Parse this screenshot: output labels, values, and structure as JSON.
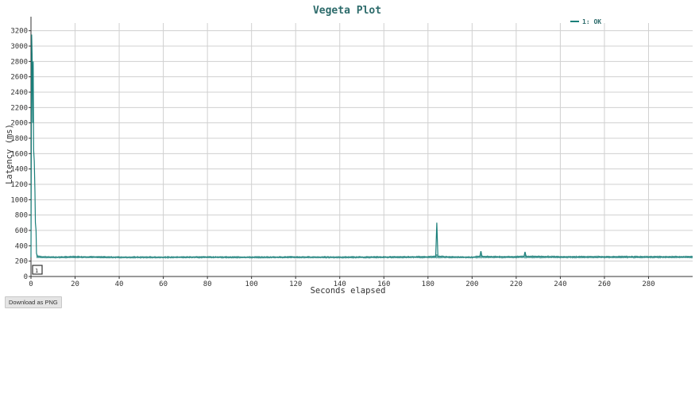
{
  "chart_data": {
    "type": "line",
    "title": "Vegeta Plot",
    "xlabel": "Seconds elapsed",
    "ylabel": "Latency (ms)",
    "xlim": [
      0,
      300
    ],
    "ylim": [
      0,
      3300
    ],
    "x_ticks": [
      0,
      20,
      40,
      60,
      80,
      100,
      120,
      140,
      160,
      180,
      200,
      220,
      240,
      260,
      280
    ],
    "y_ticks": [
      0,
      200,
      400,
      600,
      800,
      1000,
      1200,
      1400,
      1600,
      1800,
      2000,
      2200,
      2400,
      2600,
      2800,
      3000,
      3200
    ],
    "grid": true,
    "legend_position": "top-right",
    "series": [
      {
        "name": "1: OK",
        "color": "#1a7f7a",
        "x": [
          0,
          0.3,
          0.5,
          0.8,
          1.0,
          1.2,
          1.5,
          1.8,
          2.0,
          2.3,
          2.5,
          3,
          5,
          10,
          20,
          40,
          60,
          80,
          100,
          120,
          140,
          160,
          180,
          183.5,
          184,
          184.5,
          190,
          200,
          203.5,
          204,
          204.5,
          210,
          220,
          223.5,
          224,
          224.5,
          240,
          260,
          280,
          300
        ],
        "y": [
          250,
          3150,
          2900,
          2000,
          2800,
          1650,
          1500,
          1100,
          700,
          600,
          300,
          260,
          255,
          250,
          255,
          250,
          250,
          252,
          250,
          252,
          250,
          252,
          255,
          260,
          700,
          260,
          252,
          250,
          260,
          330,
          260,
          255,
          255,
          260,
          320,
          260,
          255,
          255,
          255,
          255
        ]
      }
    ],
    "annotation": "1"
  },
  "buttons": {
    "download_label": "Download as PNG"
  }
}
